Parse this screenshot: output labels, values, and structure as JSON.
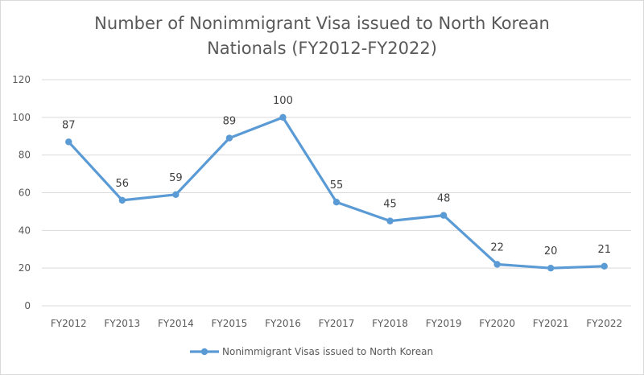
{
  "chart_data": {
    "type": "line",
    "title_line1": "Number of Nonimmigrant Visa issued to North Korean",
    "title_line2": "Nationals (FY2012-FY2022)",
    "categories": [
      "FY2012",
      "FY2013",
      "FY2014",
      "FY2015",
      "FY2016",
      "FY2017",
      "FY2018",
      "FY2019",
      "FY2020",
      "FY2021",
      "FY2022"
    ],
    "series": [
      {
        "name": "Nonimmigrant Visas issued to North Korean",
        "values": [
          87,
          56,
          59,
          89,
          100,
          55,
          45,
          48,
          22,
          20,
          21
        ],
        "color": "#5b9bd5"
      }
    ],
    "ylim": [
      0,
      120
    ],
    "yticks": [
      0,
      20,
      40,
      60,
      80,
      100,
      120
    ],
    "grid": true,
    "gridColor": "#d9d9d9",
    "legend": "bottom",
    "xlabel": "",
    "ylabel": ""
  }
}
